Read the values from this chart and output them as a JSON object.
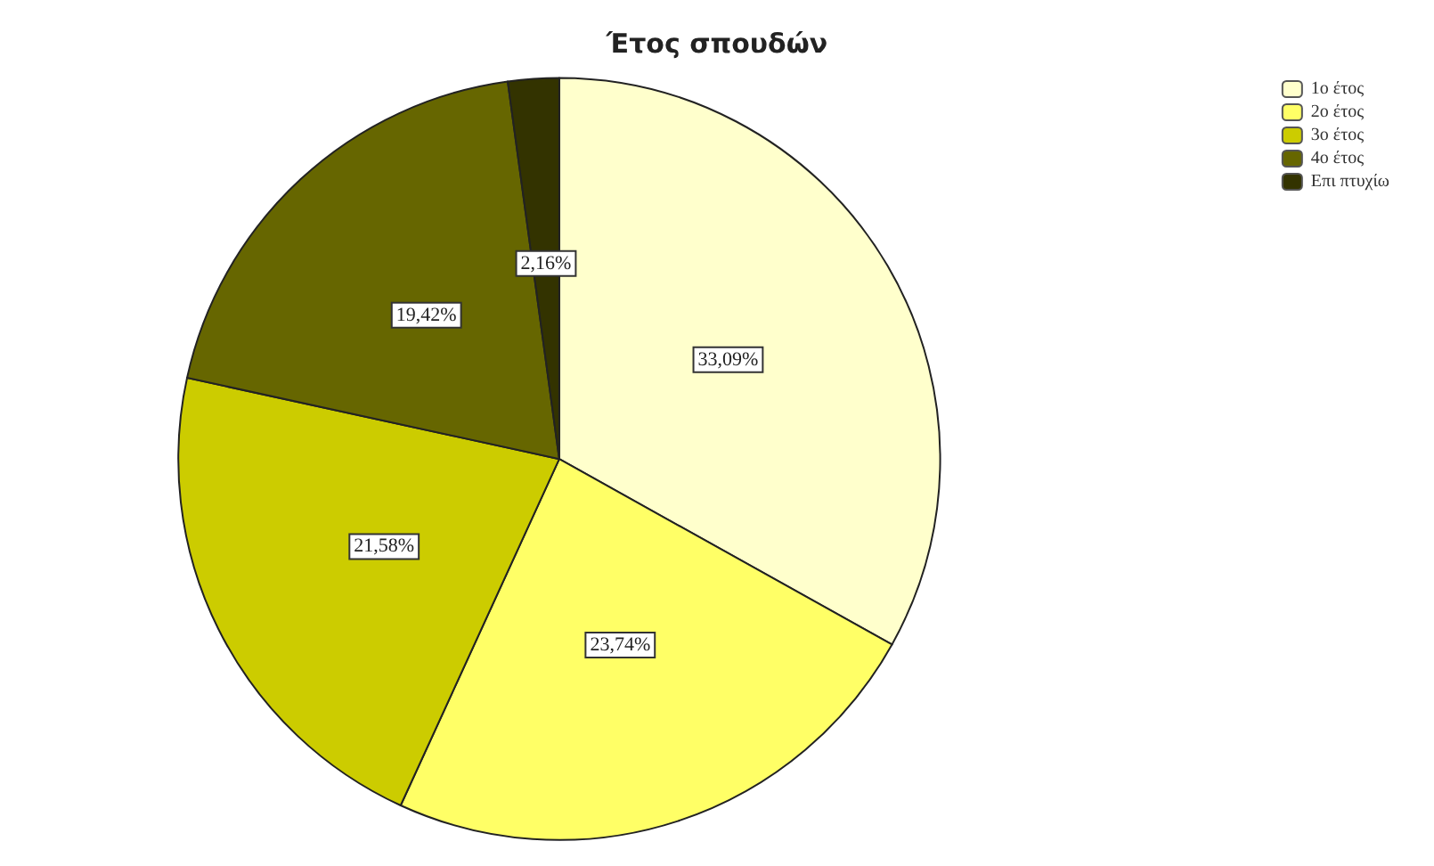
{
  "chart_data": {
    "type": "pie",
    "title": "Έτος σπουδών",
    "categories": [
      "1ο έτος",
      "2ο έτος",
      "3ο έτος",
      "4ο έτος",
      "Επι πτυχίω"
    ],
    "values": [
      33.09,
      23.74,
      21.58,
      19.42,
      2.16
    ],
    "value_labels": [
      "33,09%",
      "23,74%",
      "21,58%",
      "19,42%",
      "2,16%"
    ],
    "colors": [
      "#ffffcc",
      "#ffff66",
      "#cccc00",
      "#666600",
      "#333300"
    ],
    "legend": "top right"
  }
}
